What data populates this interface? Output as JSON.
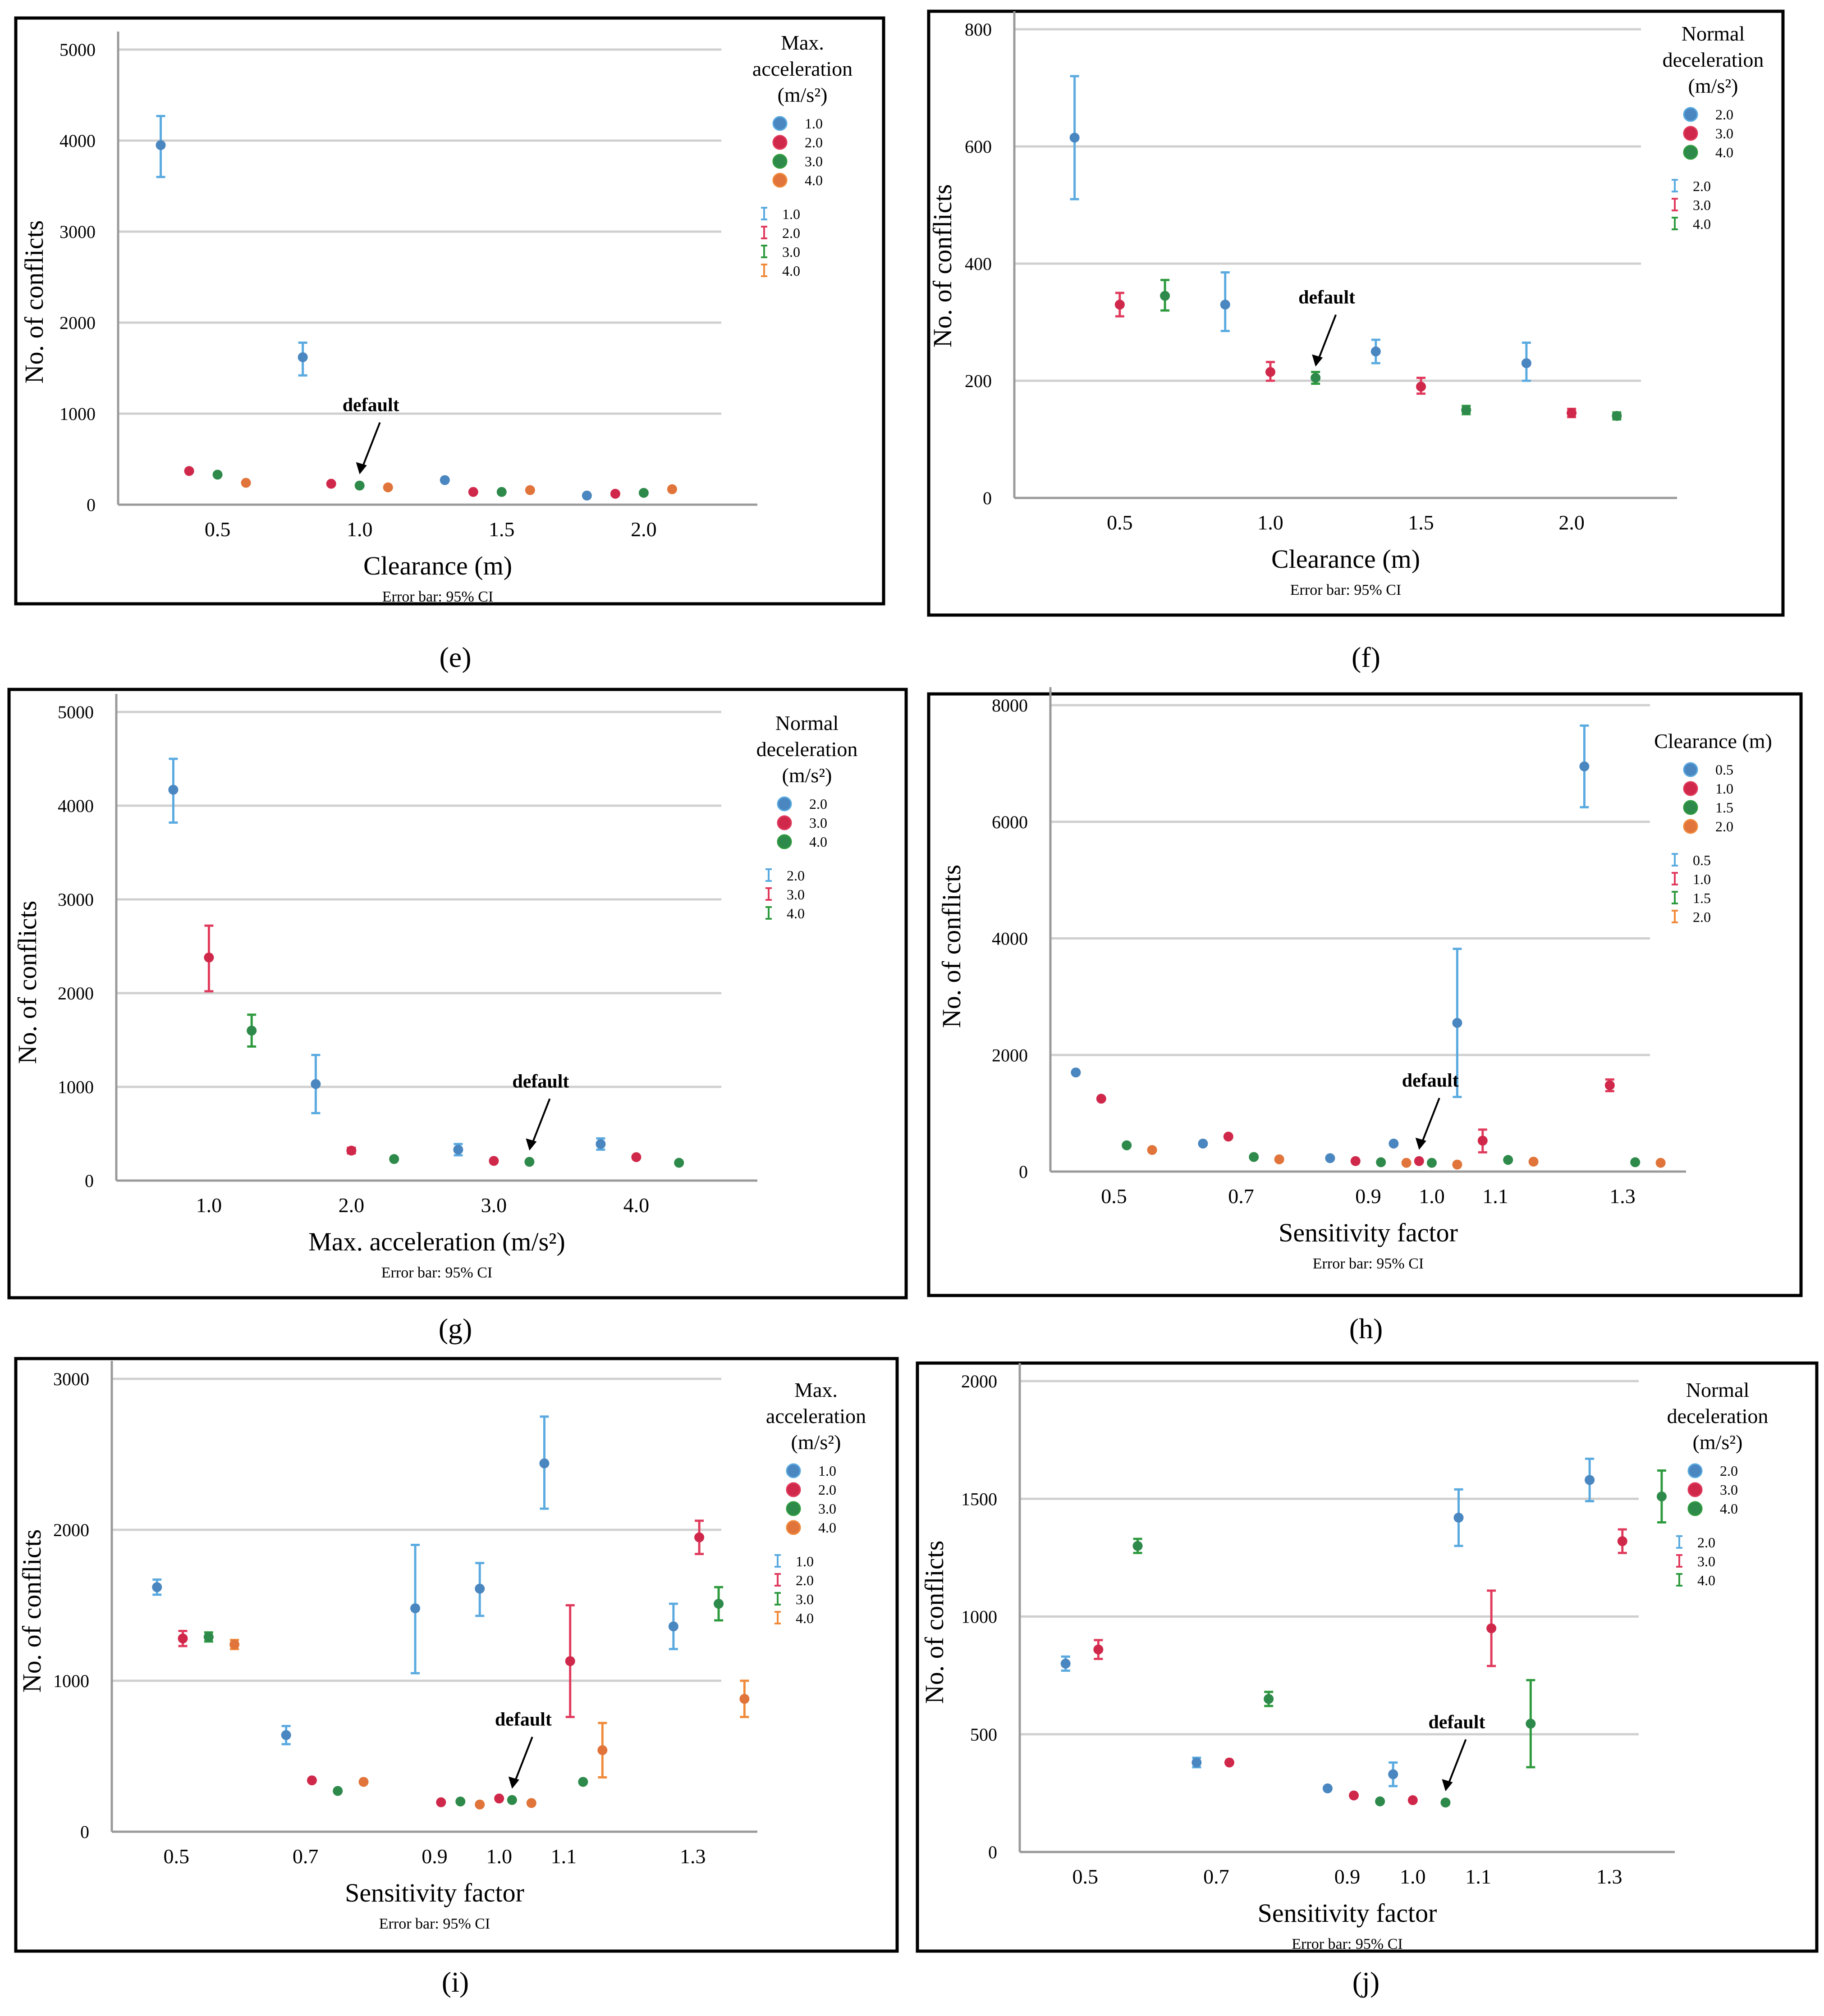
{
  "captions": [
    "(e)",
    "(f)",
    "(g)",
    "(h)",
    "(i)",
    "(j)"
  ],
  "chart_data": [
    {
      "id": "e",
      "type": "scatter",
      "xlabel": "Clearance  (m)",
      "ylabel": "No. of conflicts",
      "note": "Error bar: 95% CI",
      "ylim": [
        0,
        5000
      ],
      "xlim": [
        0.15,
        2.4
      ],
      "yticks": [
        0,
        1000,
        2000,
        3000,
        4000,
        5000
      ],
      "xticks": [
        0.5,
        1.0,
        1.5,
        2.0
      ],
      "xtick_labels": [
        "0.5",
        "1.0",
        "1.5",
        "2.0"
      ],
      "legend_title": [
        "Max.",
        "acceleration",
        "(m/s²)"
      ],
      "legend": [
        "1.0",
        "2.0",
        "3.0",
        "4.0"
      ],
      "annotation": {
        "text": "default",
        "x": 1.0,
        "y": 210
      },
      "series": [
        {
          "name": "1.0",
          "color": "#4a86c0",
          "err_color": "#5aaae0",
          "points": [
            {
              "x": 0.3,
              "y": 3950,
              "lo": 3600,
              "hi": 4270
            },
            {
              "x": 0.8,
              "y": 1620,
              "lo": 1420,
              "hi": 1780
            },
            {
              "x": 1.3,
              "y": 270
            },
            {
              "x": 1.8,
              "y": 100
            }
          ]
        },
        {
          "name": "2.0",
          "color": "#d0284a",
          "err_color": "#e03a5c",
          "points": [
            {
              "x": 0.4,
              "y": 370
            },
            {
              "x": 0.9,
              "y": 230
            },
            {
              "x": 1.4,
              "y": 140
            },
            {
              "x": 1.9,
              "y": 120
            }
          ]
        },
        {
          "name": "3.0",
          "color": "#2e8a4a",
          "err_color": "#2e9a3e",
          "points": [
            {
              "x": 0.5,
              "y": 330
            },
            {
              "x": 1.0,
              "y": 210
            },
            {
              "x": 1.5,
              "y": 140
            },
            {
              "x": 2.0,
              "y": 130
            }
          ]
        },
        {
          "name": "4.0",
          "color": "#e0743a",
          "err_color": "#f08a3a",
          "points": [
            {
              "x": 0.6,
              "y": 240
            },
            {
              "x": 1.1,
              "y": 190
            },
            {
              "x": 1.6,
              "y": 160
            },
            {
              "x": 2.1,
              "y": 170
            }
          ]
        }
      ]
    },
    {
      "id": "f",
      "type": "scatter",
      "xlabel": "Clearance  (m)",
      "ylabel": "No. of conflicts",
      "note": "Error bar: 95% CI",
      "ylim": [
        0,
        800
      ],
      "xlim": [
        0.15,
        2.35
      ],
      "yticks": [
        0,
        200,
        400,
        600,
        800
      ],
      "xticks": [
        0.5,
        1.0,
        1.5,
        2.0
      ],
      "xtick_labels": [
        "0.5",
        "1.0",
        "1.5",
        "2.0"
      ],
      "legend_title": [
        "Normal",
        "deceleration",
        "(m/s²)"
      ],
      "legend": [
        "2.0",
        "3.0",
        "4.0"
      ],
      "annotation": {
        "text": "default",
        "x": 1.15,
        "y": 205
      },
      "series": [
        {
          "name": "2.0",
          "color": "#4a86c0",
          "err_color": "#5aaae0",
          "points": [
            {
              "x": 0.35,
              "y": 615,
              "lo": 510,
              "hi": 720
            },
            {
              "x": 0.85,
              "y": 330,
              "lo": 285,
              "hi": 385
            },
            {
              "x": 1.35,
              "y": 250,
              "lo": 230,
              "hi": 270
            },
            {
              "x": 1.85,
              "y": 230,
              "lo": 200,
              "hi": 265
            }
          ]
        },
        {
          "name": "3.0",
          "color": "#d0284a",
          "err_color": "#e03a5c",
          "points": [
            {
              "x": 0.5,
              "y": 330,
              "lo": 310,
              "hi": 350
            },
            {
              "x": 1.0,
              "y": 215,
              "lo": 200,
              "hi": 232
            },
            {
              "x": 1.5,
              "y": 190,
              "lo": 178,
              "hi": 205
            },
            {
              "x": 2.0,
              "y": 145,
              "lo": 138,
              "hi": 152
            }
          ]
        },
        {
          "name": "4.0",
          "color": "#2e8a4a",
          "err_color": "#2e9a3e",
          "points": [
            {
              "x": 0.65,
              "y": 345,
              "lo": 320,
              "hi": 372
            },
            {
              "x": 1.15,
              "y": 205,
              "lo": 195,
              "hi": 215
            },
            {
              "x": 1.65,
              "y": 150,
              "lo": 143,
              "hi": 157
            },
            {
              "x": 2.15,
              "y": 140,
              "lo": 134,
              "hi": 146
            }
          ]
        }
      ]
    },
    {
      "id": "g",
      "type": "scatter",
      "xlabel": "Max. acceleration  (m/s²)",
      "ylabel": "No. of conflicts",
      "note": "Error bar: 95% CI",
      "ylim": [
        0,
        5000
      ],
      "xlim": [
        0.35,
        4.85
      ],
      "yticks": [
        0,
        1000,
        2000,
        3000,
        4000,
        5000
      ],
      "xticks": [
        1.0,
        2.0,
        3.0,
        4.0
      ],
      "xtick_labels": [
        "1.0",
        "2.0",
        "3.0",
        "4.0"
      ],
      "legend_title": [
        "Normal",
        "deceleration",
        "(m/s²)"
      ],
      "legend": [
        "2.0",
        "3.0",
        "4.0"
      ],
      "annotation": {
        "text": "default",
        "x": 3.25,
        "y": 200
      },
      "series": [
        {
          "name": "2.0",
          "color": "#4a86c0",
          "err_color": "#5aaae0",
          "points": [
            {
              "x": 0.75,
              "y": 4170,
              "lo": 3820,
              "hi": 4500
            },
            {
              "x": 1.75,
              "y": 1030,
              "lo": 720,
              "hi": 1340
            },
            {
              "x": 2.75,
              "y": 330,
              "lo": 270,
              "hi": 390
            },
            {
              "x": 3.75,
              "y": 390,
              "lo": 330,
              "hi": 450
            }
          ]
        },
        {
          "name": "3.0",
          "color": "#d0284a",
          "err_color": "#e03a5c",
          "points": [
            {
              "x": 1.0,
              "y": 2380,
              "lo": 2020,
              "hi": 2720
            },
            {
              "x": 2.0,
              "y": 320,
              "lo": 290,
              "hi": 350
            },
            {
              "x": 3.0,
              "y": 210
            },
            {
              "x": 4.0,
              "y": 250
            }
          ]
        },
        {
          "name": "4.0",
          "color": "#2e8a4a",
          "err_color": "#2e9a3e",
          "points": [
            {
              "x": 1.3,
              "y": 1600,
              "lo": 1430,
              "hi": 1770
            },
            {
              "x": 2.3,
              "y": 230
            },
            {
              "x": 3.25,
              "y": 200
            },
            {
              "x": 4.3,
              "y": 190
            }
          ]
        }
      ]
    },
    {
      "id": "h",
      "type": "scatter",
      "xlabel": "Sensitivity  factor",
      "ylabel": "No. of conflicts",
      "note": "Error bar: 95% CI",
      "ylim": [
        0,
        8000
      ],
      "xlim": [
        0.4,
        1.4
      ],
      "yticks": [
        0,
        2000,
        4000,
        6000,
        8000
      ],
      "xticks": [
        0.5,
        0.7,
        0.9,
        1.0,
        1.1,
        1.3
      ],
      "xtick_labels": [
        "0.5",
        "0.7",
        "0.9",
        "1.0",
        "1.1",
        "1.3"
      ],
      "legend_title": [
        "Clearance (m)"
      ],
      "legend": [
        "0.5",
        "1.0",
        "1.5",
        "2.0"
      ],
      "annotation": {
        "text": "default",
        "x": 0.98,
        "y": 180
      },
      "series": [
        {
          "name": "0.5",
          "color": "#4a86c0",
          "err_color": "#5aaae0",
          "points": [
            {
              "x": 0.44,
              "y": 1700
            },
            {
              "x": 0.64,
              "y": 480
            },
            {
              "x": 0.84,
              "y": 230
            },
            {
              "x": 0.94,
              "y": 480
            },
            {
              "x": 1.04,
              "y": 2550,
              "lo": 1280,
              "hi": 3820
            },
            {
              "x": 1.24,
              "y": 6950,
              "lo": 6250,
              "hi": 7650
            }
          ]
        },
        {
          "name": "1.0",
          "color": "#d0284a",
          "err_color": "#e03a5c",
          "points": [
            {
              "x": 0.48,
              "y": 1250
            },
            {
              "x": 0.68,
              "y": 600
            },
            {
              "x": 0.88,
              "y": 180
            },
            {
              "x": 0.98,
              "y": 180
            },
            {
              "x": 1.08,
              "y": 530,
              "lo": 330,
              "hi": 720
            },
            {
              "x": 1.28,
              "y": 1480,
              "lo": 1380,
              "hi": 1580
            }
          ]
        },
        {
          "name": "1.5",
          "color": "#2e8a4a",
          "err_color": "#2e9a3e",
          "points": [
            {
              "x": 0.52,
              "y": 450
            },
            {
              "x": 0.72,
              "y": 250
            },
            {
              "x": 0.92,
              "y": 160
            },
            {
              "x": 1.0,
              "y": 150
            },
            {
              "x": 1.12,
              "y": 200
            },
            {
              "x": 1.32,
              "y": 160
            }
          ]
        },
        {
          "name": "2.0",
          "color": "#e0743a",
          "err_color": "#f08a3a",
          "points": [
            {
              "x": 0.56,
              "y": 370
            },
            {
              "x": 0.76,
              "y": 210
            },
            {
              "x": 0.96,
              "y": 150
            },
            {
              "x": 1.04,
              "y": 120
            },
            {
              "x": 1.16,
              "y": 170
            },
            {
              "x": 1.36,
              "y": 150
            }
          ]
        }
      ]
    },
    {
      "id": "i",
      "type": "scatter",
      "xlabel": "Sensitivity  factor",
      "ylabel": "No. of conflicts",
      "note": "Error bar: 95% CI",
      "ylim": [
        0,
        3000
      ],
      "xlim": [
        0.4,
        1.4
      ],
      "yticks": [
        0,
        1000,
        2000,
        3000
      ],
      "xticks": [
        0.5,
        0.7,
        0.9,
        1.0,
        1.1,
        1.3
      ],
      "xtick_labels": [
        "0.5",
        "0.7",
        "0.9",
        "1.0",
        "1.1",
        "1.3"
      ],
      "legend_title": [
        "Max.",
        "acceleration",
        "(m/s²)"
      ],
      "legend": [
        "1.0",
        "2.0",
        "3.0",
        "4.0"
      ],
      "annotation": {
        "text": "default",
        "x": 1.02,
        "y": 210
      },
      "series": [
        {
          "name": "1.0",
          "color": "#4a86c0",
          "err_color": "#5aaae0",
          "points": [
            {
              "x": 0.47,
              "y": 1620,
              "lo": 1570,
              "hi": 1670
            },
            {
              "x": 0.67,
              "y": 640,
              "lo": 580,
              "hi": 700
            },
            {
              "x": 0.87,
              "y": 1480,
              "lo": 1050,
              "hi": 1900
            },
            {
              "x": 0.97,
              "y": 1610,
              "lo": 1430,
              "hi": 1780
            },
            {
              "x": 1.07,
              "y": 2440,
              "lo": 2140,
              "hi": 2750
            },
            {
              "x": 1.27,
              "y": 1360,
              "lo": 1210,
              "hi": 1510
            }
          ]
        },
        {
          "name": "2.0",
          "color": "#d0284a",
          "err_color": "#e03a5c",
          "points": [
            {
              "x": 0.51,
              "y": 1280,
              "lo": 1230,
              "hi": 1330
            },
            {
              "x": 0.71,
              "y": 340
            },
            {
              "x": 0.91,
              "y": 195
            },
            {
              "x": 1.0,
              "y": 220
            },
            {
              "x": 1.11,
              "y": 1130,
              "lo": 760,
              "hi": 1500
            },
            {
              "x": 1.31,
              "y": 1950,
              "lo": 1840,
              "hi": 2060
            }
          ]
        },
        {
          "name": "3.0",
          "color": "#2e8a4a",
          "err_color": "#2e9a3e",
          "points": [
            {
              "x": 0.55,
              "y": 1290,
              "lo": 1260,
              "hi": 1320
            },
            {
              "x": 0.75,
              "y": 270
            },
            {
              "x": 0.94,
              "y": 200
            },
            {
              "x": 1.02,
              "y": 210
            },
            {
              "x": 1.13,
              "y": 330
            },
            {
              "x": 1.34,
              "y": 1510,
              "lo": 1400,
              "hi": 1620
            }
          ]
        },
        {
          "name": "4.0",
          "color": "#e0743a",
          "err_color": "#f08a3a",
          "points": [
            {
              "x": 0.59,
              "y": 1240,
              "lo": 1210,
              "hi": 1270
            },
            {
              "x": 0.79,
              "y": 330
            },
            {
              "x": 0.97,
              "y": 180
            },
            {
              "x": 1.05,
              "y": 190
            },
            {
              "x": 1.16,
              "y": 540,
              "lo": 360,
              "hi": 720
            },
            {
              "x": 1.38,
              "y": 880,
              "lo": 760,
              "hi": 1000
            }
          ]
        }
      ]
    },
    {
      "id": "j",
      "type": "scatter",
      "xlabel": "Sensitivity  factor",
      "ylabel": "No. of conflicts",
      "note": "Error bar: 95% CI",
      "ylim": [
        0,
        2000
      ],
      "xlim": [
        0.4,
        1.4
      ],
      "yticks": [
        0,
        500,
        1000,
        1500,
        2000
      ],
      "xticks": [
        0.5,
        0.7,
        0.9,
        1.0,
        1.1,
        1.3
      ],
      "xtick_labels": [
        "0.5",
        "0.7",
        "0.9",
        "1.0",
        "1.1",
        "1.3"
      ],
      "legend_title": [
        "Normal",
        "deceleration",
        "(m/s²)"
      ],
      "legend": [
        "2.0",
        "3.0",
        "4.0"
      ],
      "annotation": {
        "text": "default",
        "x": 1.05,
        "y": 210
      },
      "series": [
        {
          "name": "2.0",
          "color": "#4a86c0",
          "err_color": "#5aaae0",
          "points": [
            {
              "x": 0.47,
              "y": 800,
              "lo": 770,
              "hi": 830
            },
            {
              "x": 0.67,
              "y": 380,
              "lo": 360,
              "hi": 400
            },
            {
              "x": 0.87,
              "y": 270
            },
            {
              "x": 0.97,
              "y": 330,
              "lo": 280,
              "hi": 380
            },
            {
              "x": 1.07,
              "y": 1420,
              "lo": 1300,
              "hi": 1540
            },
            {
              "x": 1.27,
              "y": 1580,
              "lo": 1490,
              "hi": 1670
            }
          ]
        },
        {
          "name": "3.0",
          "color": "#d0284a",
          "err_color": "#e03a5c",
          "points": [
            {
              "x": 0.52,
              "y": 860,
              "lo": 820,
              "hi": 900
            },
            {
              "x": 0.72,
              "y": 380
            },
            {
              "x": 0.91,
              "y": 240
            },
            {
              "x": 1.0,
              "y": 220
            },
            {
              "x": 1.12,
              "y": 950,
              "lo": 790,
              "hi": 1110
            },
            {
              "x": 1.32,
              "y": 1320,
              "lo": 1270,
              "hi": 1370
            }
          ]
        },
        {
          "name": "4.0",
          "color": "#2e8a4a",
          "err_color": "#2e9a3e",
          "points": [
            {
              "x": 0.58,
              "y": 1300,
              "lo": 1270,
              "hi": 1330
            },
            {
              "x": 0.78,
              "y": 650,
              "lo": 620,
              "hi": 680
            },
            {
              "x": 0.95,
              "y": 215
            },
            {
              "x": 1.05,
              "y": 210
            },
            {
              "x": 1.18,
              "y": 545,
              "lo": 360,
              "hi": 730
            },
            {
              "x": 1.38,
              "y": 1510,
              "lo": 1400,
              "hi": 1620
            }
          ]
        }
      ]
    }
  ]
}
